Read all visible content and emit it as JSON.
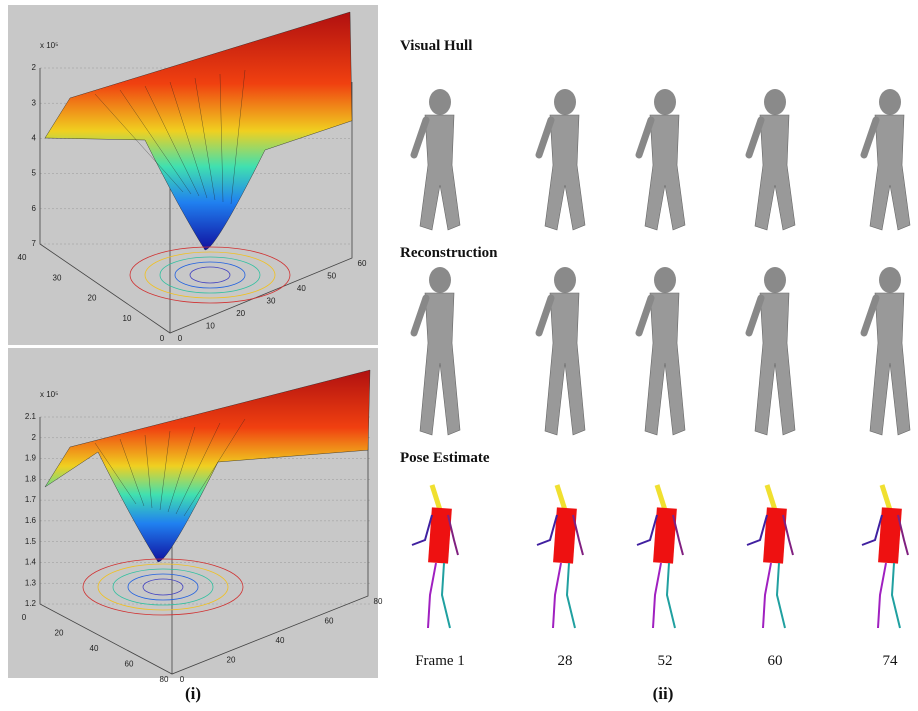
{
  "panel_i": {
    "plot_top": {
      "exponent_label": "x 10⁵",
      "z_ticks": [
        "2",
        "3",
        "4",
        "5",
        "6",
        "7"
      ],
      "x_ticks": [
        "40",
        "30",
        "20",
        "10",
        "0"
      ],
      "y_ticks": [
        "0",
        "10",
        "20",
        "30",
        "40",
        "50",
        "60"
      ]
    },
    "plot_bottom": {
      "exponent_label": "x 10⁵",
      "z_ticks": [
        "2.1",
        "2",
        "1.9",
        "1.8",
        "1.7",
        "1.6",
        "1.5",
        "1.4",
        "1.3",
        "1.2"
      ],
      "x_ticks": [
        "0",
        "20",
        "40",
        "60",
        "80"
      ],
      "y_ticks": [
        "0",
        "20",
        "40",
        "60",
        "80"
      ]
    },
    "caption": "(i)"
  },
  "panel_ii": {
    "row_labels": [
      "Visual Hull",
      "Reconstruction",
      "Pose Estimate"
    ],
    "frame_labels": [
      "Frame 1",
      "28",
      "52",
      "60",
      "74"
    ],
    "caption": "(ii)"
  }
}
